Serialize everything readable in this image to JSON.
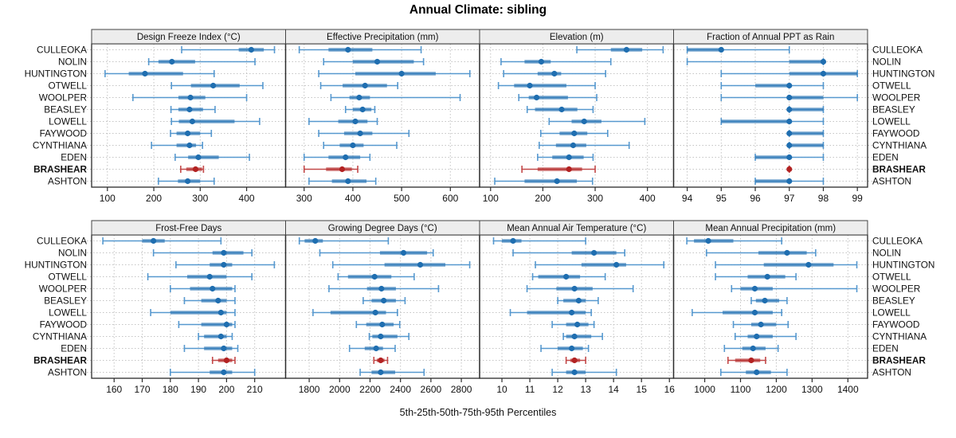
{
  "title": "Annual Climate: sibling",
  "caption": "5th-25th-50th-75th-95th Percentiles",
  "row_labels": [
    "CULLEOKA",
    "NOLIN",
    "HUNTINGTON",
    "OTWELL",
    "WOOLPER",
    "BEASLEY",
    "LOWELL",
    "FAYWOOD",
    "CYNTHIANA",
    "EDEN",
    "BRASHEAR",
    "ASHTON"
  ],
  "highlight_label": "BRASHEAR",
  "colors": {
    "series_main": "#1f6eb0",
    "series_light": "#4f94cd",
    "highlight_main": "#b22222",
    "highlight_light": "#c04040",
    "strip_bg": "#ededed",
    "strip_border": "#444444",
    "panel_border": "#2b2b2b",
    "grid": "#c4c4c4",
    "text": "#111111"
  },
  "percentiles": [
    "5th",
    "25th",
    "50th",
    "75th",
    "95th"
  ],
  "chart_data": [
    {
      "type": "dot-interval",
      "title": "Design Freeze Index (°C)",
      "xlim": [
        66,
        484
      ],
      "ticks": [
        100,
        200,
        300,
        400
      ],
      "values": [
        [
          260,
          383,
          410,
          437,
          460
        ],
        [
          189,
          210,
          239,
          289,
          418
        ],
        [
          95,
          146,
          181,
          263,
          330
        ],
        [
          238,
          280,
          328,
          385,
          435
        ],
        [
          155,
          253,
          279,
          311,
          400
        ],
        [
          237,
          253,
          277,
          306,
          332
        ],
        [
          238,
          254,
          283,
          374,
          428
        ],
        [
          236,
          249,
          273,
          300,
          324
        ],
        [
          195,
          249,
          277,
          291,
          305
        ],
        [
          246,
          274,
          296,
          340,
          406
        ],
        [
          258,
          270,
          290,
          304,
          307
        ],
        [
          210,
          252,
          273,
          300,
          330
        ]
      ]
    },
    {
      "type": "dot-interval",
      "title": "Effective Precipitation (mm)",
      "xlim": [
        262,
        660
      ],
      "ticks": [
        300,
        400,
        500,
        600
      ],
      "values": [
        [
          290,
          350,
          390,
          440,
          540
        ],
        [
          340,
          400,
          450,
          525,
          545
        ],
        [
          330,
          405,
          500,
          570,
          640
        ],
        [
          334,
          379,
          425,
          470,
          492
        ],
        [
          355,
          393,
          413,
          435,
          620
        ],
        [
          385,
          400,
          420,
          438,
          445
        ],
        [
          310,
          370,
          405,
          430,
          450
        ],
        [
          330,
          382,
          415,
          440,
          515
        ],
        [
          340,
          373,
          400,
          422,
          490
        ],
        [
          300,
          350,
          385,
          415,
          435
        ],
        [
          300,
          345,
          378,
          398,
          410
        ],
        [
          310,
          357,
          390,
          428,
          447
        ]
      ]
    },
    {
      "type": "dot-interval",
      "title": "Elevation (m)",
      "xlim": [
        79,
        450
      ],
      "ticks": [
        100,
        200,
        300,
        400
      ],
      "values": [
        [
          265,
          330,
          360,
          390,
          430
        ],
        [
          120,
          165,
          197,
          215,
          330
        ],
        [
          125,
          190,
          222,
          235,
          320
        ],
        [
          115,
          145,
          175,
          245,
          300
        ],
        [
          154,
          173,
          188,
          248,
          303
        ],
        [
          170,
          185,
          236,
          266,
          296
        ],
        [
          212,
          255,
          279,
          312,
          395
        ],
        [
          196,
          232,
          260,
          285,
          324
        ],
        [
          193,
          225,
          258,
          283,
          365
        ],
        [
          190,
          218,
          250,
          278,
          296
        ],
        [
          160,
          190,
          250,
          275,
          300
        ],
        [
          108,
          165,
          227,
          265,
          295
        ]
      ]
    },
    {
      "type": "dot-interval",
      "title": "Fraction of Annual PPT as Rain",
      "xlim": [
        93.6,
        99.3
      ],
      "ticks": [
        94,
        95,
        96,
        97,
        98,
        99
      ],
      "values": [
        [
          94,
          94,
          95,
          95,
          97
        ],
        [
          94,
          97,
          98,
          98,
          98
        ],
        [
          95,
          97,
          98,
          99,
          99
        ],
        [
          95,
          96,
          97,
          97,
          98
        ],
        [
          95,
          97,
          97,
          98,
          99
        ],
        [
          97,
          97,
          97,
          98,
          98
        ],
        [
          95,
          95,
          97,
          97,
          98
        ],
        [
          97,
          97,
          97,
          98,
          98
        ],
        [
          97,
          97,
          97,
          98,
          98
        ],
        [
          96,
          96,
          97,
          97,
          98
        ],
        [
          97,
          97,
          97,
          97,
          97
        ],
        [
          96,
          96,
          97,
          97,
          98
        ]
      ]
    },
    {
      "type": "dot-interval",
      "title": "Frost-Free Days",
      "xlim": [
        152,
        221
      ],
      "ticks": [
        160,
        170,
        180,
        190,
        200,
        210
      ],
      "values": [
        [
          156,
          170,
          174,
          178,
          198
        ],
        [
          174,
          195,
          199,
          206,
          209
        ],
        [
          182,
          194,
          199,
          202,
          217
        ],
        [
          172,
          186,
          194,
          200,
          209
        ],
        [
          180,
          187,
          195,
          202,
          203
        ],
        [
          185,
          191,
          197,
          200,
          203
        ],
        [
          173,
          180,
          198,
          200,
          203
        ],
        [
          183,
          191,
          200,
          202,
          203
        ],
        [
          190,
          192,
          198,
          200,
          202
        ],
        [
          185,
          192,
          199,
          202,
          204
        ],
        [
          195,
          197,
          200,
          202,
          203
        ],
        [
          180,
          194,
          199,
          202,
          210
        ]
      ]
    },
    {
      "type": "dot-interval",
      "title": "Growing Degree Days (°C)",
      "xlim": [
        1645,
        2920
      ],
      "ticks": [
        1800,
        2000,
        2200,
        2400,
        2600,
        2800
      ],
      "values": [
        [
          1735,
          1770,
          1840,
          1890,
          2320
        ],
        [
          1870,
          2265,
          2420,
          2575,
          2615
        ],
        [
          1955,
          2295,
          2530,
          2695,
          2855
        ],
        [
          1990,
          2055,
          2230,
          2340,
          2490
        ],
        [
          1930,
          2180,
          2275,
          2370,
          2650
        ],
        [
          2155,
          2210,
          2290,
          2370,
          2430
        ],
        [
          1825,
          1940,
          2235,
          2305,
          2380
        ],
        [
          2110,
          2175,
          2280,
          2355,
          2395
        ],
        [
          2195,
          2215,
          2270,
          2380,
          2455
        ],
        [
          2065,
          2165,
          2240,
          2285,
          2365
        ],
        [
          2225,
          2245,
          2270,
          2295,
          2315
        ],
        [
          2135,
          2210,
          2270,
          2365,
          2555
        ]
      ]
    },
    {
      "type": "dot-interval",
      "title": "Mean Annual Air Temperature (°C)",
      "xlim": [
        9.2,
        16.15
      ],
      "ticks": [
        10,
        11,
        12,
        13,
        14,
        15,
        16
      ],
      "values": [
        [
          9.7,
          10.0,
          10.4,
          10.7,
          13.0
        ],
        [
          10.4,
          12.5,
          13.3,
          14.1,
          14.4
        ],
        [
          11.2,
          12.85,
          14.1,
          14.45,
          15.8
        ],
        [
          11.1,
          11.3,
          12.3,
          12.8,
          13.7
        ],
        [
          10.9,
          11.95,
          12.6,
          13.25,
          14.7
        ],
        [
          12.0,
          12.2,
          12.75,
          13.0,
          13.45
        ],
        [
          10.3,
          10.9,
          12.5,
          13.0,
          13.2
        ],
        [
          11.8,
          12.3,
          12.7,
          13.1,
          13.3
        ],
        [
          12.2,
          12.3,
          12.6,
          13.2,
          13.6
        ],
        [
          11.4,
          12.0,
          12.5,
          12.9,
          13.1
        ],
        [
          12.3,
          12.45,
          12.6,
          12.8,
          13.0
        ],
        [
          11.8,
          12.3,
          12.6,
          13.0,
          14.1
        ]
      ]
    },
    {
      "type": "dot-interval",
      "title": "Mean Annual Precipitation (mm)",
      "xlim": [
        913,
        1455
      ],
      "ticks": [
        1000,
        1100,
        1200,
        1300,
        1400
      ],
      "values": [
        [
          950,
          970,
          1010,
          1080,
          1215
        ],
        [
          1005,
          1150,
          1230,
          1285,
          1310
        ],
        [
          1030,
          1165,
          1290,
          1360,
          1425
        ],
        [
          1030,
          1120,
          1175,
          1225,
          1255
        ],
        [
          1075,
          1100,
          1140,
          1190,
          1425
        ],
        [
          1130,
          1143,
          1168,
          1208,
          1230
        ],
        [
          965,
          1050,
          1140,
          1190,
          1215
        ],
        [
          1080,
          1130,
          1157,
          1200,
          1233
        ],
        [
          1085,
          1120,
          1145,
          1190,
          1255
        ],
        [
          1055,
          1105,
          1135,
          1170,
          1205
        ],
        [
          1065,
          1085,
          1130,
          1155,
          1170
        ],
        [
          1045,
          1115,
          1145,
          1185,
          1230
        ]
      ]
    }
  ]
}
